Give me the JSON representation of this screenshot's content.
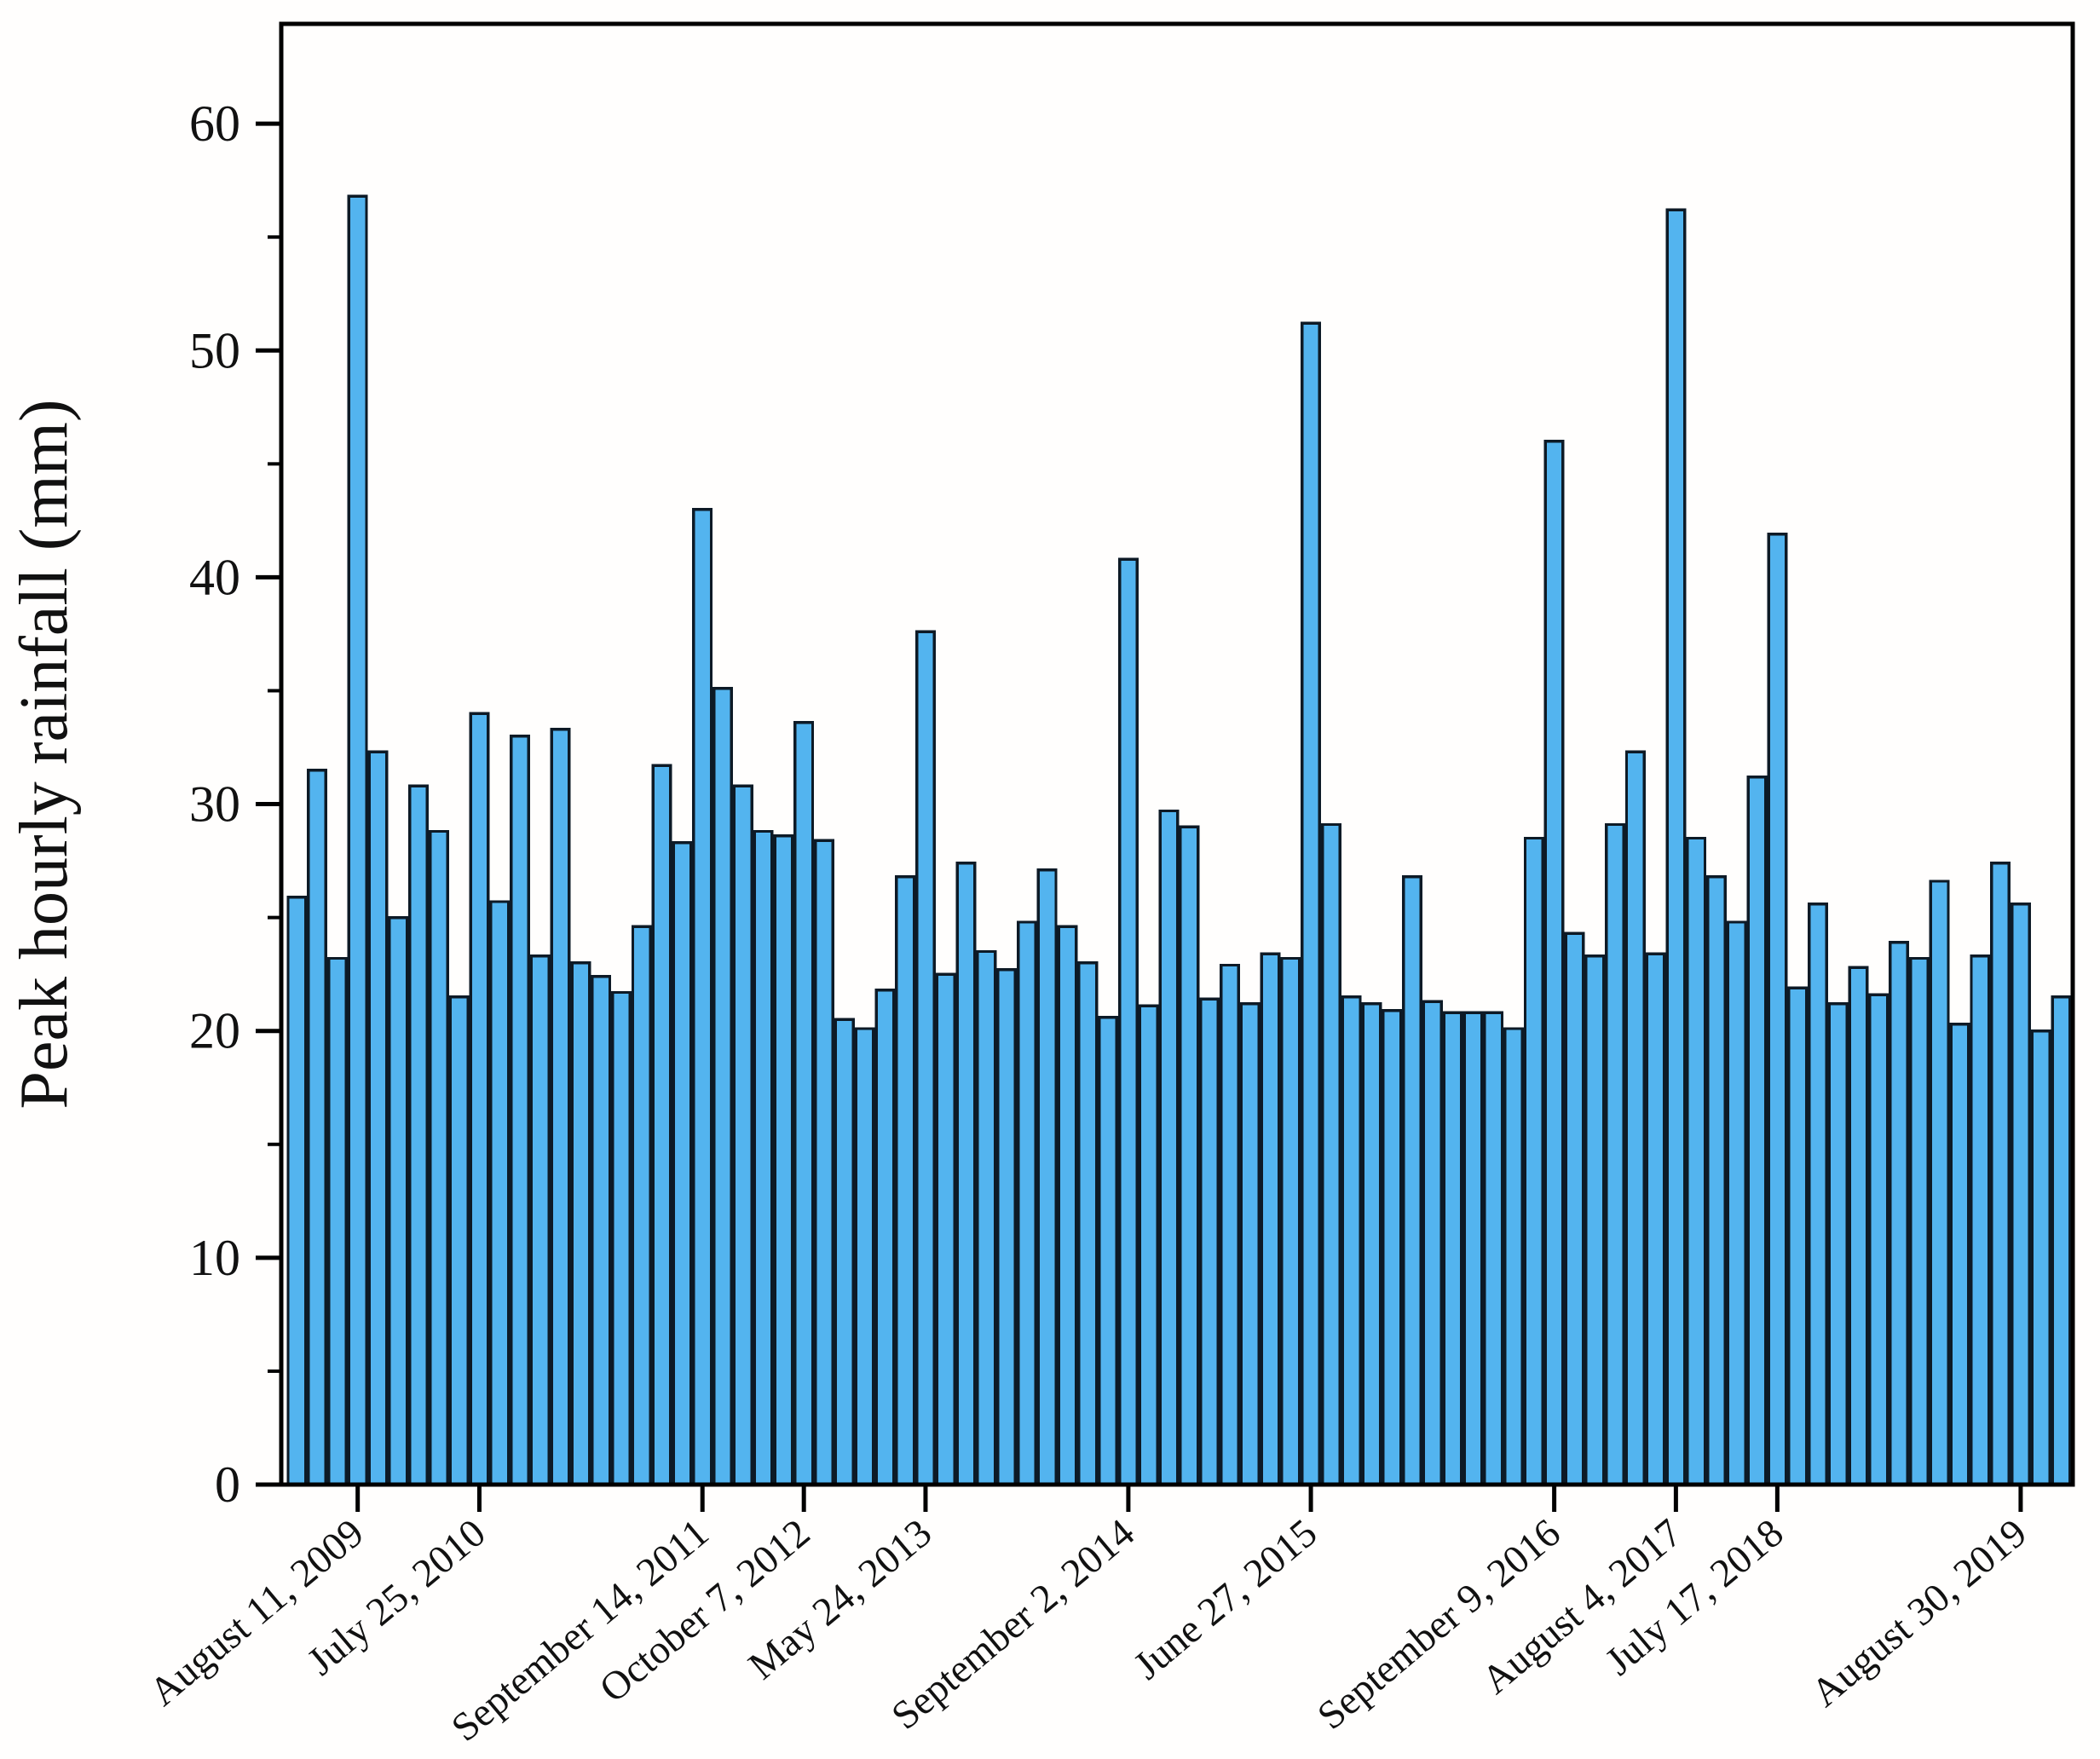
{
  "figure": {
    "title": "",
    "background": "#fffefd"
  },
  "chart_data": {
    "type": "bar",
    "title": "",
    "xlabel": "",
    "ylabel": "Peak hourly rainfall (mm)",
    "ylim": [
      0,
      64.4
    ],
    "grid": false,
    "legend": "none",
    "bar_fill_color": "#53b4ef",
    "bar_edge_color": "#0d1a26",
    "axis_color": "#000000",
    "text_color": "#111111",
    "y_major_ticks": [
      0,
      10,
      20,
      30,
      40,
      50,
      60
    ],
    "y_minor_ticks": [
      5,
      15,
      25,
      35,
      45,
      55
    ],
    "values": [
      25.9,
      31.5,
      23.2,
      56.8,
      32.3,
      25.0,
      30.8,
      28.8,
      21.5,
      34.0,
      25.7,
      33.0,
      23.3,
      33.3,
      23.0,
      22.4,
      21.7,
      24.6,
      31.7,
      28.3,
      43.0,
      35.1,
      30.8,
      28.8,
      28.6,
      33.6,
      28.4,
      20.5,
      20.1,
      21.8,
      26.8,
      37.6,
      22.5,
      27.4,
      23.5,
      22.7,
      24.8,
      27.1,
      24.6,
      23.0,
      20.6,
      40.8,
      21.1,
      29.7,
      29.0,
      21.4,
      22.9,
      21.2,
      23.4,
      23.2,
      51.2,
      29.1,
      21.5,
      21.2,
      20.9,
      26.8,
      21.3,
      20.8,
      20.8,
      20.8,
      20.1,
      28.5,
      46.0,
      24.3,
      23.3,
      29.1,
      32.3,
      23.4,
      56.2,
      28.5,
      26.8,
      24.8,
      31.2,
      41.9,
      21.9,
      25.6,
      21.2,
      22.8,
      21.6,
      23.9,
      23.2,
      26.6,
      20.3,
      23.3,
      27.4,
      25.6,
      20.0,
      21.5
    ],
    "x_ticks": [
      {
        "bar_index": 3,
        "label": "August 11, 2009"
      },
      {
        "bar_index": 9,
        "label": "July 25, 2010"
      },
      {
        "bar_index": 20,
        "label": "September 14, 2011"
      },
      {
        "bar_index": 25,
        "label": "October 7, 2012"
      },
      {
        "bar_index": 31,
        "label": "May 24, 2013"
      },
      {
        "bar_index": 41,
        "label": "September 2, 2014"
      },
      {
        "bar_index": 50,
        "label": "June 27, 2015"
      },
      {
        "bar_index": 62,
        "label": "September 9, 2016"
      },
      {
        "bar_index": 68,
        "label": "August 4, 2017"
      },
      {
        "bar_index": 73,
        "label": "July 17, 2018"
      },
      {
        "bar_index": 85,
        "label": "August 30, 2019"
      }
    ]
  }
}
